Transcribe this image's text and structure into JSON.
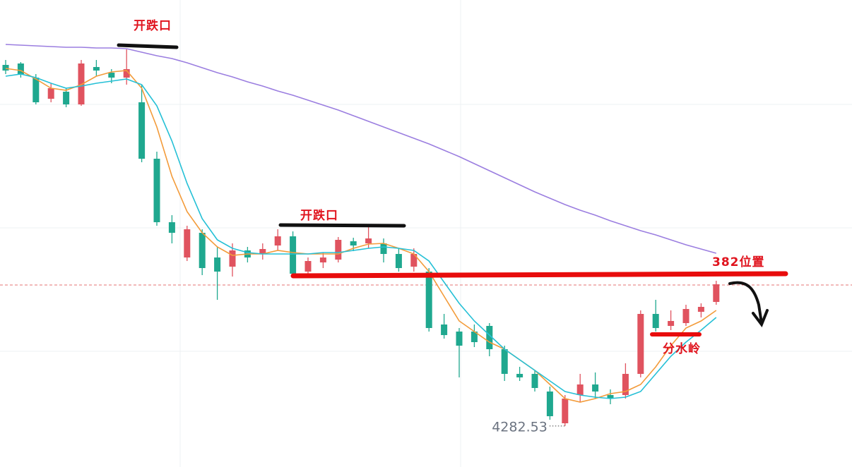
{
  "chart_data": {
    "type": "candlestick",
    "ylim": [
      4268,
      4433.5
    ],
    "up_color": "#e0535f",
    "down_color": "#1fa88f",
    "price_line": 4332.5,
    "price_line_color": "#e57373",
    "open": [
      4410.5,
      4411,
      4406,
      4398.5,
      4401,
      4396.5,
      4409.75,
      4407.75,
      4406,
      4397.25,
      4377.25,
      4354.75,
      4342.25,
      4351,
      4342.25,
      4339,
      4344.75,
      4343.5,
      4346.5,
      4349.75,
      4337.25,
      4340.5,
      4341.5,
      4348,
      4347.25,
      4347.25,
      4343.5,
      4339,
      4337.25,
      4318.5,
      4316,
      4316,
      4318,
      4309.75,
      4301,
      4301,
      4294.75,
      4283.5,
      4293.5,
      4297.25,
      4293.5,
      4293.5,
      4301,
      4322.25,
      4318,
      4319,
      4323,
      4326.5
    ],
    "close": [
      4408.5,
      4407.25,
      4397.25,
      4402.25,
      4396.5,
      4411,
      4408.5,
      4406,
      4409,
      4377.25,
      4354.75,
      4351,
      4352.25,
      4338.5,
      4337.25,
      4344.75,
      4342.25,
      4345.25,
      4349.75,
      4336.5,
      4341,
      4342.25,
      4348.5,
      4346.5,
      4349,
      4343.5,
      4338.5,
      4343.5,
      4317.25,
      4314.75,
      4311,
      4312.25,
      4309.75,
      4301,
      4299.75,
      4296,
      4286,
      4292.25,
      4297.25,
      4294.75,
      4292.25,
      4301,
      4322.25,
      4317.25,
      4319.75,
      4324,
      4324.75,
      4332.75
    ],
    "high": [
      4412.25,
      4411.5,
      4407.25,
      4404,
      4402.25,
      4412.25,
      4412.25,
      4409,
      4416,
      4403.5,
      4379.75,
      4357.25,
      4353.5,
      4352.25,
      4346,
      4347.25,
      4346,
      4347.25,
      4352.25,
      4351.5,
      4342.25,
      4344,
      4349.5,
      4349.25,
      4353,
      4349,
      4345.5,
      4345.5,
      4338.5,
      4322.25,
      4317.25,
      4318.5,
      4319,
      4311,
      4303.5,
      4302.25,
      4296.5,
      4293.5,
      4301,
      4301.5,
      4295.5,
      4304.75,
      4323.5,
      4327.25,
      4323.5,
      4325.5,
      4326,
      4334
    ],
    "low": [
      4407.25,
      4406,
      4396.5,
      4397.25,
      4395.5,
      4396,
      4406.5,
      4404,
      4403.5,
      4376,
      4353.5,
      4347.25,
      4341,
      4336,
      4327.25,
      4335.5,
      4340.5,
      4341.5,
      4344.75,
      4335.5,
      4335.5,
      4338.5,
      4340.5,
      4344.5,
      4345.5,
      4340.5,
      4337.25,
      4337.25,
      4316,
      4313.5,
      4299.75,
      4310.5,
      4307.25,
      4298.5,
      4298.5,
      4294.75,
      4284.75,
      4282.53,
      4291,
      4292.25,
      4290.25,
      4292.25,
      4299.75,
      4316,
      4316.5,
      4318,
      4321,
      4325.5
    ],
    "ma_lines": [
      {
        "color": "#f39b3a",
        "values": [
          4409.25,
          4408.5,
          4405.5,
          4402.25,
          4401.5,
          4403.5,
          4406.5,
          4408,
          4408.5,
          4402.25,
          4388.5,
          4371,
          4358.5,
          4351,
          4346,
          4343,
          4343.5,
          4343.5,
          4344.75,
          4344,
          4343.5,
          4343.5,
          4343.5,
          4345.5,
          4347,
          4347.25,
          4345.5,
          4343.5,
          4337.25,
          4328.5,
          4319.75,
          4316,
          4312.25,
          4309.75,
          4306,
          4302.25,
          4297.25,
          4292.25,
          4291,
          4292.25,
          4294,
          4294.75,
          4297.25,
          4303.5,
          4311,
          4317.25,
          4319.75,
          4323.5
        ]
      },
      {
        "color": "#25c0d6",
        "values": [
          4406.5,
          4407.25,
          4406,
          4404,
          4402.25,
          4403,
          4404,
          4404.75,
          4405.5,
          4403.5,
          4396,
          4383.5,
          4368.5,
          4356,
          4348.5,
          4345.5,
          4344,
          4343.5,
          4343.5,
          4343.5,
          4343.5,
          4344,
          4344,
          4344.75,
          4345.5,
          4346,
          4345.5,
          4344.75,
          4341,
          4333.5,
          4326,
          4319.75,
          4314.75,
          4309.75,
          4306,
          4302.25,
          4298.5,
          4294.75,
          4293.5,
          4292.75,
          4292.25,
          4292.75,
          4294.75,
          4301,
          4307.25,
          4312.25,
          4316.5,
          4321
        ]
      },
      {
        "color": "#9b7ee0",
        "values": [
          4417.75,
          4417.5,
          4417.25,
          4417,
          4416.75,
          4416.75,
          4416.5,
          4416.5,
          4416.25,
          4415,
          4413.75,
          4412.75,
          4411.25,
          4409.5,
          4407.75,
          4406.25,
          4404.5,
          4403,
          4401.25,
          4399.75,
          4398,
          4396.25,
          4394.5,
          4392.5,
          4390.5,
          4388.5,
          4386.5,
          4384.5,
          4382.5,
          4380.25,
          4378,
          4375.5,
          4373,
          4370.5,
          4368,
          4365.5,
          4363.25,
          4361,
          4359,
          4357.25,
          4355.25,
          4353.5,
          4351.75,
          4350.25,
          4348.5,
          4346.75,
          4345.25,
          4343.75
        ]
      }
    ],
    "annotations": [
      "开跌口",
      "开跌口",
      "382位置",
      "分水岭"
    ]
  }
}
